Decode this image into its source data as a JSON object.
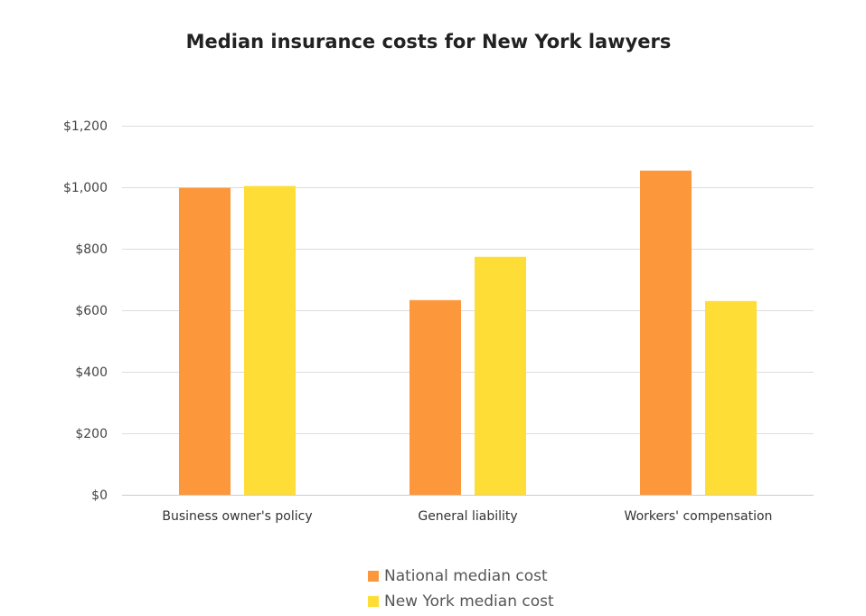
{
  "chart_data": {
    "type": "bar",
    "title": "Median insurance costs for New York lawyers",
    "categories": [
      "Business owner's policy",
      "General liability",
      "Workers' compensation"
    ],
    "series": [
      {
        "name": "National median cost",
        "color": "#fd973b",
        "values": [
          998,
          633,
          1054
        ]
      },
      {
        "name": "New York median cost",
        "color": "#fedd36",
        "values": [
          1004,
          774,
          630
        ]
      }
    ],
    "ylim": [
      0,
      1200
    ],
    "yticks": [
      0,
      200,
      400,
      600,
      800,
      1000,
      1200
    ],
    "ytick_labels": [
      "$0",
      "$200",
      "$400",
      "$600",
      "$800",
      "$1,000",
      "$1,200"
    ],
    "grid": true,
    "legend": "bottom",
    "xlabel": "",
    "ylabel": ""
  }
}
